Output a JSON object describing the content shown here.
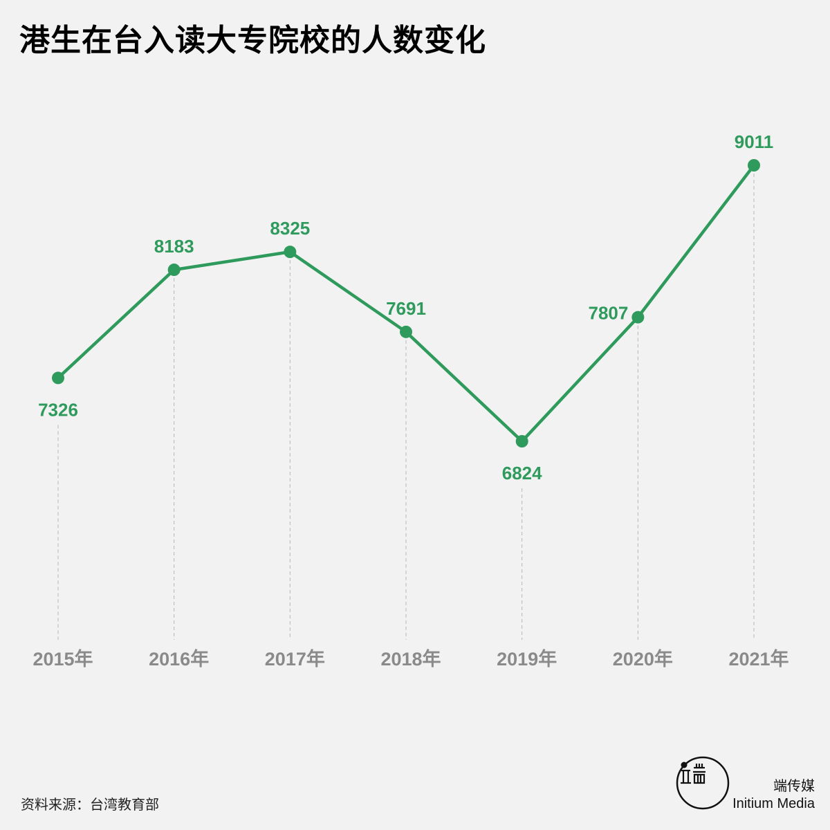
{
  "title": "港生在台入读大专院校的人数变化",
  "source": "资料来源：台湾教育部",
  "brand": {
    "cn": "端传媒",
    "en": "Initium Media",
    "logo_icon": "initium-logo-icon"
  },
  "colors": {
    "line": "#2e9a5c",
    "axis_label": "#8a8a8a",
    "guide": "#b5b5b5",
    "background": "#f2f2f2"
  },
  "chart_data": {
    "type": "line",
    "categories": [
      "2015年",
      "2016年",
      "2017年",
      "2018年",
      "2019年",
      "2020年",
      "2021年"
    ],
    "series": [
      {
        "values": [
          7326,
          8183,
          8325,
          7691,
          6824,
          7807,
          9011
        ]
      }
    ],
    "data_labels": [
      "7326",
      "8183",
      "8325",
      "7691",
      "6824",
      "7807",
      "9011"
    ],
    "label_placement": [
      "below",
      "above",
      "above",
      "above",
      "below",
      "left",
      "above"
    ],
    "ylim": [
      5000,
      9900
    ],
    "grid": false,
    "xlabel": "",
    "ylabel": ""
  }
}
